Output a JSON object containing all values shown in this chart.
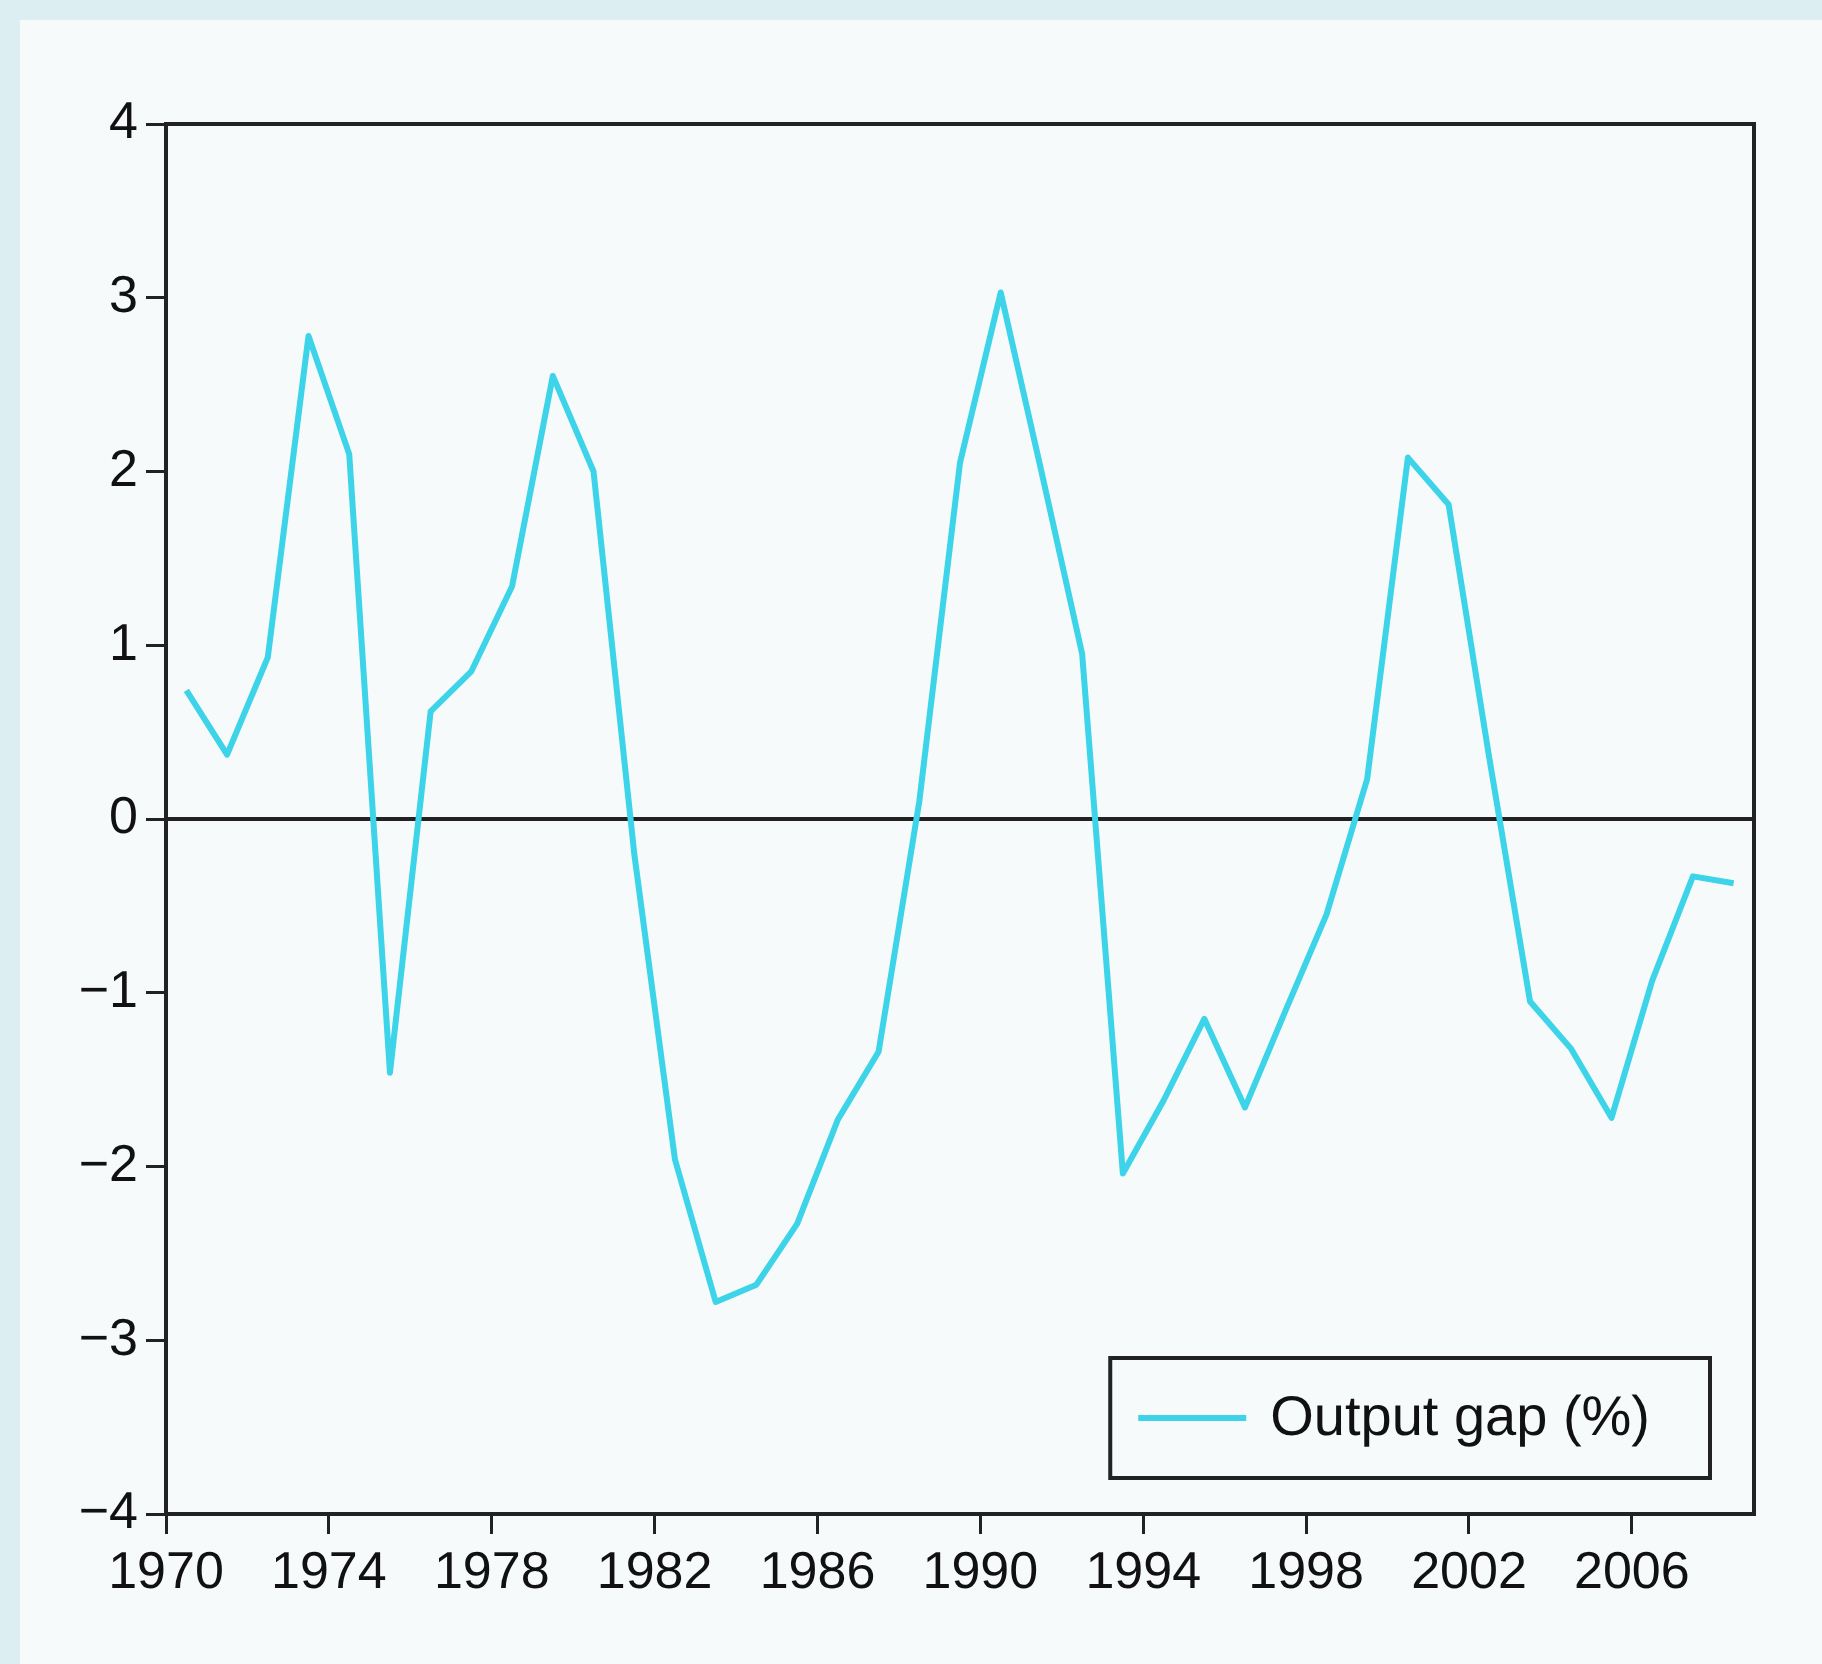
{
  "chart_data": {
    "type": "line",
    "x": [
      1970.5,
      1971.5,
      1972.5,
      1973.5,
      1974.5,
      1975.5,
      1976.5,
      1977.5,
      1978.5,
      1979.5,
      1980.5,
      1981.5,
      1982.5,
      1983.5,
      1984.5,
      1985.5,
      1986.5,
      1987.5,
      1988.5,
      1989.5,
      1990.5,
      1991.5,
      1992.5,
      1993.5,
      1994.5,
      1995.5,
      1996.5,
      1997.5,
      1998.5,
      1999.5,
      2000.5,
      2001.5,
      2002.5,
      2003.5,
      2004.5,
      2005.5,
      2006.5,
      2007.5,
      2008.5
    ],
    "series": [
      {
        "name": "Output gap (%)",
        "color": "#3dd3e8",
        "values": [
          0.74,
          0.37,
          0.93,
          2.78,
          2.1,
          -1.46,
          0.62,
          0.85,
          1.34,
          2.55,
          2.0,
          -0.2,
          -1.96,
          -2.78,
          -2.68,
          -2.33,
          -1.73,
          -1.34,
          0.1,
          2.05,
          3.03,
          2.0,
          0.95,
          -2.04,
          -1.62,
          -1.15,
          -1.66,
          -1.1,
          -0.55,
          0.23,
          2.08,
          1.81,
          0.35,
          -1.05,
          -1.32,
          -1.72,
          -0.93,
          -0.33,
          -0.37
        ]
      }
    ],
    "xlim": [
      1970,
      2009
    ],
    "xticks": [
      1970,
      1974,
      1978,
      1982,
      1986,
      1990,
      1994,
      1998,
      2002,
      2006
    ],
    "ylim": [
      -4,
      4
    ],
    "yticks": [
      -4,
      -3,
      -2,
      -1,
      0,
      1,
      2,
      3,
      4
    ],
    "ref_lines": [
      {
        "axis": "y",
        "value": 0,
        "color": "#222222"
      }
    ],
    "legend": "bottom right",
    "marker": "none",
    "line_style": "solid"
  }
}
